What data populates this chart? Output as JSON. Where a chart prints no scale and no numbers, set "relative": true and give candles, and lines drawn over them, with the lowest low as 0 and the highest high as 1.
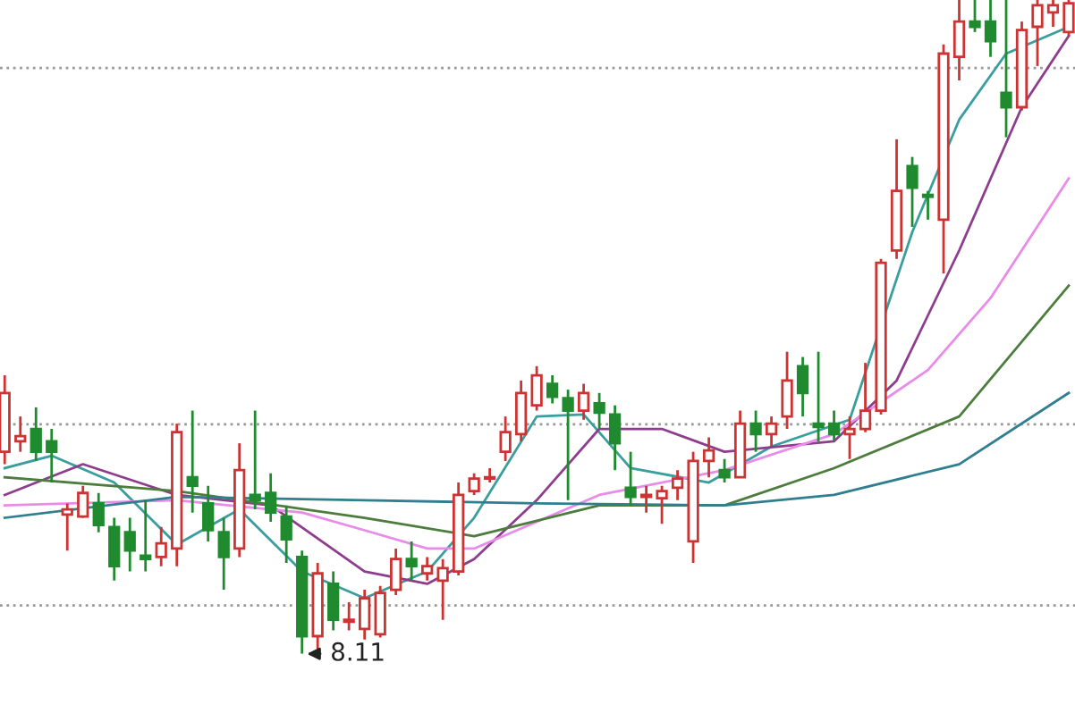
{
  "chart_data": {
    "type": "candlestick",
    "relative": true,
    "annotations": [
      "8.11"
    ],
    "categories": [
      null,
      null,
      null,
      null,
      null,
      null,
      null,
      null,
      null,
      null,
      null,
      null,
      null,
      null,
      null,
      null,
      null,
      null,
      null,
      null,
      null,
      null,
      null,
      null,
      null,
      null,
      null,
      null,
      null,
      null,
      null,
      null,
      null,
      null,
      null,
      null,
      null,
      null,
      null,
      null,
      null,
      null,
      null,
      null,
      null,
      null,
      null,
      null,
      null,
      null,
      null,
      null,
      null,
      null,
      null,
      null,
      null,
      null,
      null,
      null,
      null,
      null,
      null,
      null,
      null,
      null,
      null,
      null,
      null
    ],
    "ohlc": [
      [
        0.309,
        0.426,
        0.29,
        0.399
      ],
      [
        0.325,
        0.363,
        0.309,
        0.333
      ],
      [
        0.344,
        0.377,
        0.295,
        0.309
      ],
      [
        0.325,
        0.344,
        0.262,
        0.309
      ],
      [
        0.213,
        0.23,
        0.158,
        0.221
      ],
      [
        0.21,
        0.257,
        0.208,
        0.246
      ],
      [
        0.23,
        0.246,
        0.186,
        0.197
      ],
      [
        0.194,
        0.208,
        0.112,
        0.134
      ],
      [
        0.186,
        0.208,
        0.126,
        0.158
      ],
      [
        0.15,
        0.235,
        0.126,
        0.145
      ],
      [
        0.148,
        0.194,
        0.134,
        0.169
      ],
      [
        0.161,
        0.352,
        0.134,
        0.339
      ],
      [
        0.27,
        0.372,
        0.216,
        0.257
      ],
      [
        0.23,
        0.257,
        0.172,
        0.189
      ],
      [
        0.186,
        0.208,
        0.098,
        0.148
      ],
      [
        0.161,
        0.322,
        0.148,
        0.281
      ],
      [
        0.243,
        0.372,
        0.221,
        0.235
      ],
      [
        0.246,
        0.276,
        0.202,
        0.216
      ],
      [
        0.21,
        0.227,
        0.139,
        0.175
      ],
      [
        0.148,
        0.158,
        0,
        0.027
      ],
      [
        0.027,
        0.139,
        0.008,
        0.123
      ],
      [
        0.107,
        0.126,
        0.036,
        0.052
      ],
      [
        0.049,
        0.079,
        0.036,
        0.052
      ],
      [
        0.038,
        0.098,
        0.022,
        0.085
      ],
      [
        0.03,
        0.104,
        0.025,
        0.093
      ],
      [
        0.098,
        0.161,
        0.09,
        0.145
      ],
      [
        0.145,
        0.172,
        0.112,
        0.134
      ],
      [
        0.123,
        0.148,
        0.112,
        0.134
      ],
      [
        0.112,
        0.145,
        0.052,
        0.131
      ],
      [
        0.126,
        0.262,
        0.12,
        0.243
      ],
      [
        0.249,
        0.276,
        0.243,
        0.268
      ],
      [
        0.268,
        0.284,
        0.262,
        0.27
      ],
      [
        0.309,
        0.363,
        0.295,
        0.339
      ],
      [
        0.336,
        0.418,
        0.325,
        0.399
      ],
      [
        0.38,
        0.44,
        0.372,
        0.426
      ],
      [
        0.413,
        0.426,
        0.383,
        0.393
      ],
      [
        0.391,
        0.404,
        0.235,
        0.372
      ],
      [
        0.372,
        0.413,
        0.358,
        0.399
      ],
      [
        0.383,
        0.399,
        0.344,
        0.369
      ],
      [
        0.366,
        0.38,
        0.281,
        0.322
      ],
      [
        0.254,
        0.309,
        0.227,
        0.24
      ],
      [
        0.24,
        0.257,
        0.216,
        0.243
      ],
      [
        0.238,
        0.257,
        0.199,
        0.249
      ],
      [
        0.254,
        0.281,
        0.235,
        0.268
      ],
      [
        0.172,
        0.309,
        0.139,
        0.295
      ],
      [
        0.295,
        0.331,
        0.27,
        0.311
      ],
      [
        0.281,
        0.298,
        0.262,
        0.27
      ],
      [
        0.27,
        0.372,
        0.27,
        0.352
      ],
      [
        0.352,
        0.372,
        0.309,
        0.336
      ],
      [
        0.336,
        0.363,
        0.317,
        0.352
      ],
      [
        0.363,
        0.462,
        0.344,
        0.418
      ],
      [
        0.44,
        0.454,
        0.363,
        0.399
      ],
      [
        0.352,
        0.462,
        0.325,
        0.347
      ],
      [
        0.352,
        0.372,
        0.325,
        0.336
      ],
      [
        0.336,
        0.363,
        0.298,
        0.344
      ],
      [
        0.344,
        0.445,
        0.339,
        0.372
      ],
      [
        0.372,
        0.604,
        0.366,
        0.598
      ],
      [
        0.617,
        0.787,
        0.604,
        0.708
      ],
      [
        0.746,
        0.76,
        0.653,
        0.713
      ],
      [
        0.702,
        0.708,
        0.664,
        0.699
      ],
      [
        0.664,
        0.932,
        0.582,
        0.918
      ],
      [
        0.913,
        1,
        0.877,
        0.967
      ],
      [
        0.967,
        1,
        0.951,
        0.959
      ],
      [
        0.967,
        1,
        0.913,
        0.937
      ],
      [
        0.858,
        1,
        0.79,
        0.836
      ],
      [
        0.836,
        0.967,
        0.831,
        0.954
      ],
      [
        0.959,
        1,
        0.899,
        0.992
      ],
      [
        0.981,
        1,
        0.959,
        0.992
      ],
      [
        0.951,
        1,
        0.945,
        0.995
      ]
    ],
    "colors": [
      "#cc3333",
      "#cc3333",
      "#1f8a2e",
      "#1f8a2e",
      "#cc3333",
      "#cc3333",
      "#1f8a2e",
      "#1f8a2e",
      "#1f8a2e",
      "#1f8a2e",
      "#cc3333",
      "#cc3333",
      "#1f8a2e",
      "#1f8a2e",
      "#1f8a2e",
      "#cc3333",
      "#1f8a2e",
      "#1f8a2e",
      "#1f8a2e",
      "#1f8a2e",
      "#cc3333",
      "#1f8a2e",
      "#cc3333",
      "#cc3333",
      "#cc3333",
      "#cc3333",
      "#1f8a2e",
      "#cc3333",
      "#cc3333",
      "#cc3333",
      "#cc3333",
      "#cc3333",
      "#cc3333",
      "#cc3333",
      "#cc3333",
      "#1f8a2e",
      "#1f8a2e",
      "#cc3333",
      "#1f8a2e",
      "#1f8a2e",
      "#1f8a2e",
      "#cc3333",
      "#cc3333",
      "#cc3333",
      "#cc3333",
      "#cc3333",
      "#1f8a2e",
      "#cc3333",
      "#1f8a2e",
      "#cc3333",
      "#cc3333",
      "#1f8a2e",
      "#1f8a2e",
      "#1f8a2e",
      "#cc3333",
      "#cc3333",
      "#cc3333",
      "#cc3333",
      "#1f8a2e",
      "#1f8a2e",
      "#cc3333",
      "#cc3333",
      "#1f8a2e",
      "#1f8a2e",
      "#1f8a2e",
      "#cc3333",
      "#cc3333",
      "#cc3333",
      "#cc3333"
    ],
    "series": [
      {
        "type": "line",
        "color": "#3a9e9e",
        "values": [
          0.284,
          null,
          null,
          0.303,
          null,
          null,
          null,
          0.262,
          null,
          null,
          null,
          0.167,
          null,
          null,
          null,
          0.221,
          null,
          null,
          null,
          0.126,
          null,
          null,
          null,
          0.085,
          null,
          null,
          null,
          0.126,
          null,
          null,
          0.208,
          null,
          null,
          null,
          0.363,
          null,
          null,
          0.366,
          null,
          null,
          0.284,
          null,
          null,
          null,
          null,
          0.262,
          null,
          null,
          null,
          0.317,
          null,
          null,
          null,
          null,
          0.358,
          null,
          null,
          null,
          0.645,
          null,
          null,
          0.817,
          null,
          null,
          0.918,
          null,
          null,
          null,
          0.959
        ]
      },
      {
        "type": "line",
        "color": "#8e3d8e",
        "values": [
          0.243,
          null,
          null,
          null,
          null,
          0.29,
          null,
          null,
          null,
          null,
          null,
          0.243,
          null,
          null,
          null,
          null,
          null,
          0.227,
          null,
          null,
          null,
          null,
          null,
          0.126,
          null,
          null,
          null,
          0.107,
          null,
          null,
          0.145,
          null,
          null,
          null,
          0.235,
          null,
          null,
          null,
          0.344,
          null,
          null,
          null,
          0.344,
          null,
          null,
          null,
          0.309,
          null,
          null,
          null,
          null,
          null,
          null,
          0.325,
          null,
          null,
          null,
          0.418,
          null,
          null,
          null,
          0.617,
          null,
          null,
          null,
          0.836,
          null,
          null,
          0.945
        ]
      },
      {
        "type": "line",
        "color": "#e98be9",
        "values": [
          0.227,
          null,
          null,
          null,
          null,
          null,
          null,
          null,
          null,
          null,
          null,
          0.235,
          null,
          null,
          null,
          null,
          null,
          null,
          null,
          0.216,
          null,
          null,
          null,
          0.189,
          null,
          null,
          null,
          0.161,
          null,
          null,
          0.161,
          null,
          null,
          null,
          null,
          null,
          null,
          null,
          0.243,
          null,
          null,
          null,
          null,
          null,
          null,
          null,
          0.281,
          null,
          null,
          null,
          null,
          null,
          null,
          0.336,
          null,
          null,
          null,
          null,
          null,
          0.434,
          null,
          null,
          null,
          0.544,
          null,
          null,
          null,
          null,
          0.727
        ]
      },
      {
        "type": "line",
        "color": "#4d7d3d",
        "values": [
          0.27,
          null,
          null,
          null,
          null,
          null,
          null,
          null,
          null,
          null,
          null,
          0.249,
          null,
          null,
          null,
          null,
          null,
          null,
          null,
          null,
          null,
          null,
          null,
          0.208,
          null,
          null,
          null,
          null,
          null,
          null,
          0.18,
          null,
          null,
          null,
          null,
          null,
          null,
          null,
          0.227,
          null,
          null,
          null,
          null,
          null,
          null,
          null,
          0.227,
          null,
          null,
          null,
          null,
          null,
          null,
          0.284,
          null,
          null,
          null,
          null,
          null,
          null,
          null,
          0.363,
          null,
          null,
          null,
          null,
          null,
          null,
          0.563
        ]
      },
      {
        "type": "line",
        "color": "#2f7f8f",
        "values": [
          0.208,
          null,
          null,
          null,
          null,
          null,
          null,
          null,
          null,
          null,
          null,
          0.24,
          null,
          null,
          null,
          null,
          null,
          null,
          null,
          null,
          null,
          null,
          null,
          0.235,
          null,
          null,
          null,
          null,
          null,
          null,
          null,
          null,
          null,
          null,
          0.23,
          null,
          null,
          null,
          null,
          null,
          null,
          null,
          null,
          null,
          null,
          null,
          0.227,
          null,
          null,
          null,
          null,
          null,
          null,
          0.243,
          null,
          null,
          null,
          null,
          null,
          null,
          null,
          0.29,
          null,
          null,
          null,
          null,
          null,
          null,
          0.399
        ]
      }
    ],
    "ref_lines": [
      {
        "axis": "y",
        "value": 0.896,
        "color": "#999999",
        "line_style": "dotted"
      },
      {
        "axis": "y",
        "value": 0.351,
        "color": "#999999",
        "line_style": "dotted"
      },
      {
        "axis": "y",
        "value": 0.074,
        "color": "#999999",
        "line_style": "dotted"
      }
    ]
  }
}
